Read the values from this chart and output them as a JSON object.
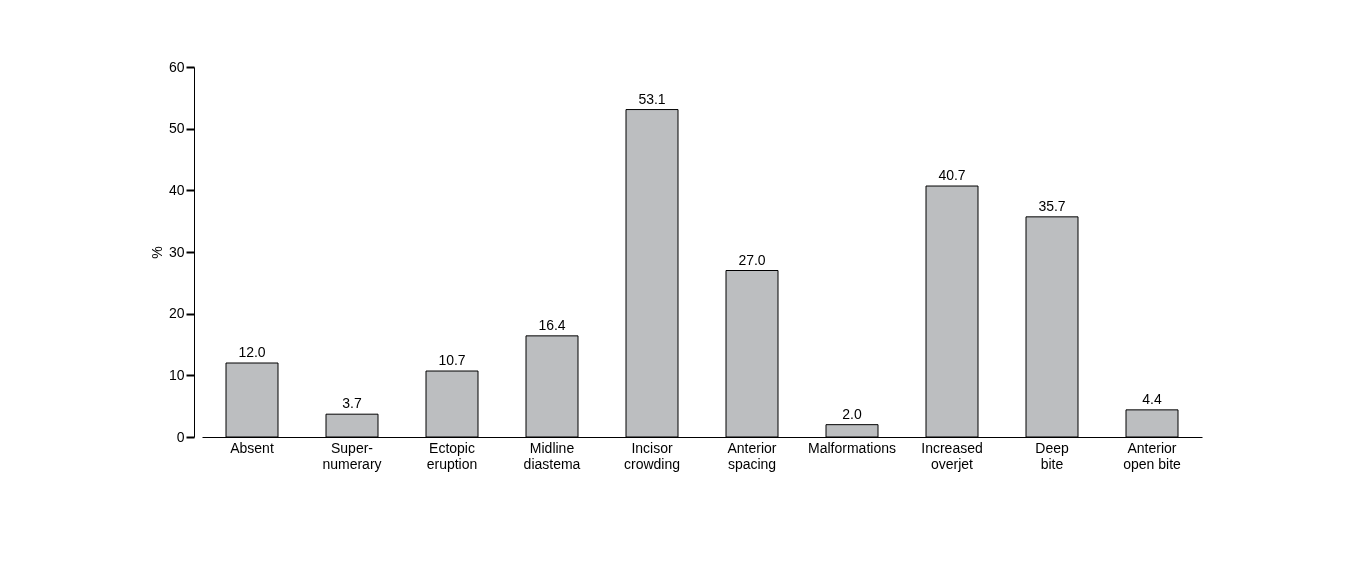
{
  "chart_data": {
    "type": "bar",
    "ylabel": "%",
    "categories": [
      "Absent",
      "Super-\nnumerary",
      "Ectopic\neruption",
      "Midline\ndiastema",
      "Incisor\ncrowding",
      "Anterior\nspacing",
      "Malformations",
      "Increased\noverjet",
      "Deep\nbite",
      "Anterior\nopen bite"
    ],
    "values": [
      12.0,
      3.7,
      10.7,
      16.4,
      53.1,
      27.0,
      2.0,
      40.7,
      35.7,
      4.4
    ],
    "color": "#bcbec0",
    "ylim": [
      0,
      60
    ],
    "yticks": [
      0,
      10,
      20,
      30,
      40,
      50,
      60
    ],
    "value_labels": [
      "12.0",
      "3.7",
      "10.7",
      "16.4",
      "53.1",
      "27.0",
      "2.0",
      "40.7",
      "35.7",
      "4.4"
    ],
    "grid": false
  }
}
